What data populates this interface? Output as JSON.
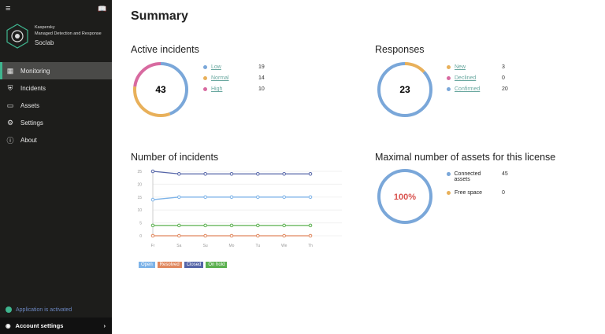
{
  "sidebar": {
    "brand": "Kaspersky",
    "product": "Managed Detection and Response",
    "tenant": "Soclab",
    "items": [
      {
        "label": "Monitoring",
        "icon": "dashboard-icon"
      },
      {
        "label": "Incidents",
        "icon": "shield-icon"
      },
      {
        "label": "Assets",
        "icon": "monitor-icon"
      },
      {
        "label": "Settings",
        "icon": "gear-icon"
      },
      {
        "label": "About",
        "icon": "info-icon"
      }
    ],
    "status": "Application is activated",
    "account": "Account settings"
  },
  "title": "Summary",
  "active": {
    "title": "Active incidents",
    "total": "43",
    "items": [
      {
        "label": "Low",
        "value": "19",
        "color": "#7aa7d9"
      },
      {
        "label": "Normal",
        "value": "14",
        "color": "#e8b05a"
      },
      {
        "label": "High",
        "value": "10",
        "color": "#d86aa0"
      }
    ]
  },
  "responses": {
    "title": "Responses",
    "total": "23",
    "items": [
      {
        "label": "New",
        "value": "3",
        "color": "#e8b05a"
      },
      {
        "label": "Declined",
        "value": "0",
        "color": "#d86aa0"
      },
      {
        "label": "Confirmed",
        "value": "20",
        "color": "#7aa7d9"
      }
    ]
  },
  "assets": {
    "title": "Maximal number of assets for this license",
    "percent": "100%",
    "items": [
      {
        "label": "Connected assets",
        "value": "45",
        "color": "#7aa7d9"
      },
      {
        "label": "Free space",
        "value": "0",
        "color": "#e8b05a"
      }
    ]
  },
  "chart_data": {
    "type": "line",
    "title": "Number of incidents",
    "categories": [
      "Fr",
      "Sa",
      "Su",
      "Mo",
      "Tu",
      "We",
      "Th"
    ],
    "ylim": [
      0,
      25
    ],
    "yticks": [
      "0",
      "5",
      "10",
      "15",
      "20",
      "25"
    ],
    "series": [
      {
        "name": "Open",
        "color": "#7db3e8",
        "values": [
          14,
          15,
          15,
          15,
          15,
          15,
          15
        ]
      },
      {
        "name": "Resolved",
        "color": "#e0885f",
        "values": [
          0,
          0,
          0,
          0,
          0,
          0,
          0
        ]
      },
      {
        "name": "Closed",
        "color": "#5565a8",
        "values": [
          25,
          24,
          24,
          24,
          24,
          24,
          24
        ]
      },
      {
        "name": "On hold",
        "color": "#5bb04f",
        "values": [
          4,
          4,
          4,
          4,
          4,
          4,
          4
        ]
      }
    ]
  }
}
